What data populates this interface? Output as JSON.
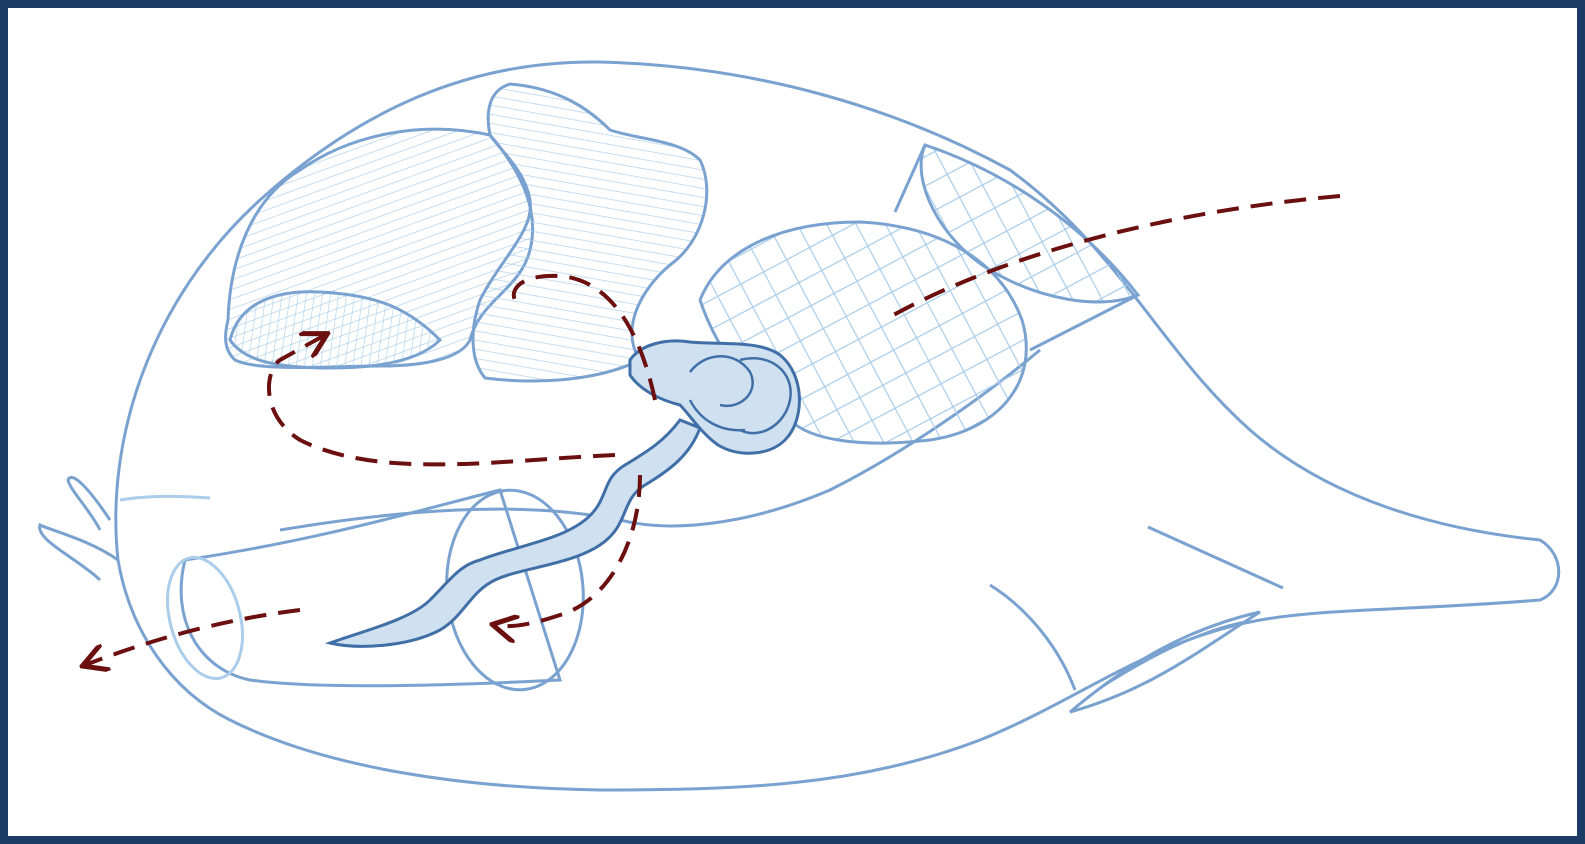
{
  "figure": {
    "style": {
      "frame_color": "#1c3a66",
      "background": "#ffffff",
      "outline_color": "#7aa2d0",
      "hatch_color": "#a9cdea",
      "organ_fill": "#cfe0f1",
      "organ_stroke": "#3f6fa6",
      "flow_arrow_color": "#6b0f0f"
    },
    "parts": [
      "body-outline",
      "beak",
      "mouth-tube",
      "dorsal-arm",
      "striated-crop-pouch",
      "striated-upper-lobe",
      "netted-stomach",
      "netted-cone",
      "convoluted-organ",
      "coiled-duct",
      "flow-path-arrows"
    ],
    "text_labels": []
  }
}
